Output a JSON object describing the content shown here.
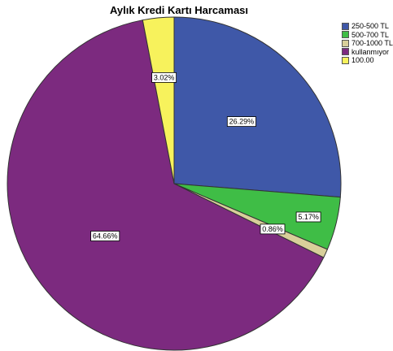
{
  "chart_data": {
    "type": "pie",
    "title": "Aylık Kredi Kartı Harcaması",
    "slices": [
      {
        "label": "250-500 TL",
        "value": 26.29,
        "display": "26.29%",
        "color": "#3f58a8"
      },
      {
        "label": "500-700 TL",
        "value": 5.17,
        "display": "5.17%",
        "color": "#3fbd46"
      },
      {
        "label": "700-1000 TL",
        "value": 0.86,
        "display": "0.86%",
        "color": "#d8cf9a"
      },
      {
        "label": "kullanmıyor",
        "value": 64.66,
        "display": "64.66%",
        "color": "#7c2a7f"
      },
      {
        "label": "100.00",
        "value": 3.02,
        "display": "3.02%",
        "color": "#f7f25c"
      }
    ],
    "legend_position": "top-right"
  }
}
